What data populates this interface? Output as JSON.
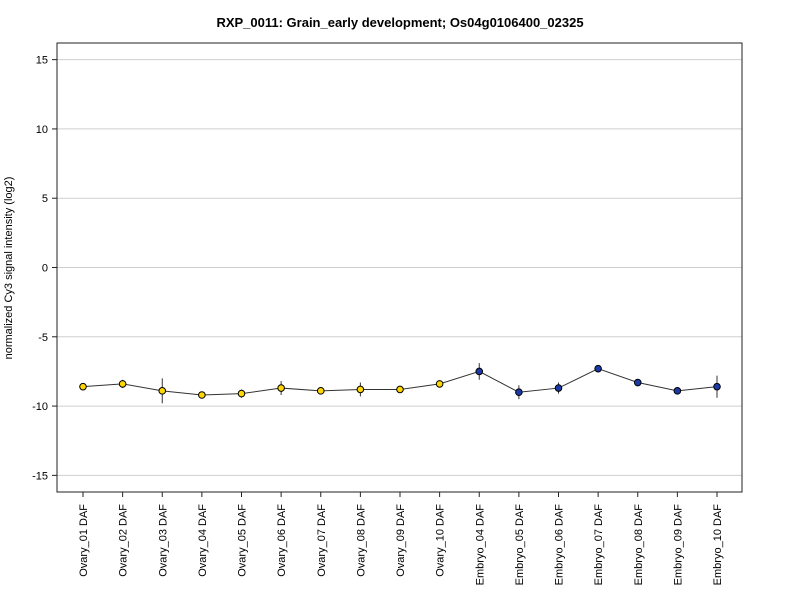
{
  "chart_data": {
    "type": "line",
    "title": "RXP_0011: Grain_early development; Os04g0106400_02325",
    "xlabel": "",
    "ylabel": "normalized Cy3 signal intensity (log2)",
    "ylim": [
      -16.2,
      16.2
    ],
    "yticks": [
      15,
      10,
      5,
      0,
      -5,
      -10,
      -15
    ],
    "grid": true,
    "categories": [
      "Ovary_01 DAF",
      "Ovary_02 DAF",
      "Ovary_03 DAF",
      "Ovary_04 DAF",
      "Ovary_05 DAF",
      "Ovary_06 DAF",
      "Ovary_07 DAF",
      "Ovary_08 DAF",
      "Ovary_09 DAF",
      "Ovary_10 DAF",
      "Embryo_04 DAF",
      "Embryo_05 DAF",
      "Embryo_06 DAF",
      "Embryo_07 DAF",
      "Embryo_08 DAF",
      "Embryo_09 DAF",
      "Embryo_10 DAF"
    ],
    "values": [
      -8.6,
      -8.4,
      -8.9,
      -9.2,
      -9.1,
      -8.7,
      -8.9,
      -8.8,
      -8.8,
      -8.4,
      -7.5,
      -9.0,
      -8.7,
      -7.3,
      -8.3,
      -8.9,
      -8.6
    ],
    "errors": [
      0.2,
      0.3,
      0.9,
      0.2,
      0.3,
      0.5,
      0.2,
      0.5,
      0.2,
      0.2,
      0.6,
      0.5,
      0.4,
      0.2,
      0.2,
      0.1,
      0.8
    ],
    "point_colors": [
      "#ffd700",
      "#ffd700",
      "#ffd700",
      "#ffd700",
      "#ffd700",
      "#ffd700",
      "#ffd700",
      "#ffd700",
      "#ffd700",
      "#ffd700",
      "#1c3aa6",
      "#1c3aa6",
      "#1c3aa6",
      "#1c3aa6",
      "#1c3aa6",
      "#1c3aa6",
      "#1c3aa6"
    ]
  }
}
